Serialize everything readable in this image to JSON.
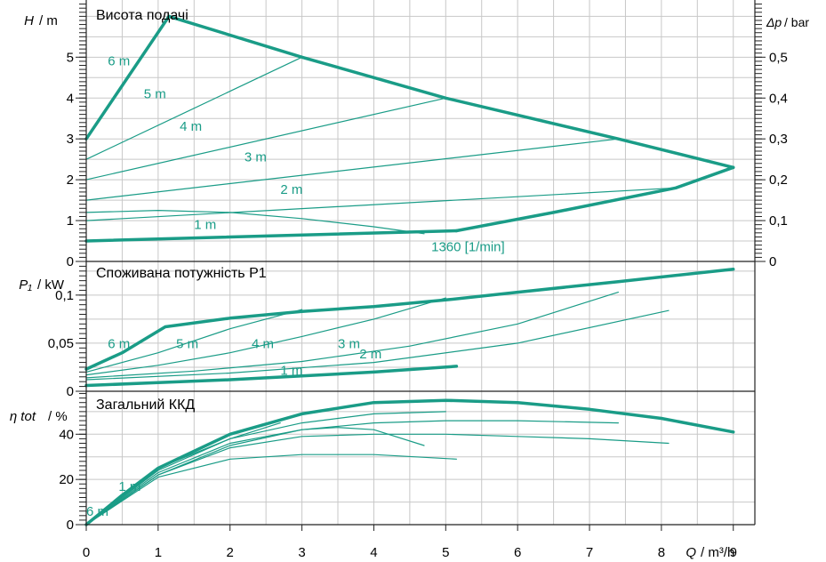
{
  "colors": {
    "curve": "#1a9c87",
    "grid": "#c8c8c8",
    "frame": "#222222",
    "text": "#000000"
  },
  "x_axis": {
    "label": "Q",
    "unit": "/ m³/h",
    "range": [
      0,
      9.3
    ],
    "ticks": [
      "0",
      "1",
      "2",
      "3",
      "4",
      "5",
      "6",
      "7",
      "8",
      "9"
    ]
  },
  "chart_data": [
    {
      "type": "line",
      "title": "Висота подачі",
      "ylabel": "H",
      "yunit": "/ m",
      "ylim": [
        0,
        6.4
      ],
      "yticks": [
        "0",
        "1",
        "2",
        "3",
        "4",
        "5"
      ],
      "secondary_axis": {
        "label": "Δp",
        "unit": "/ bar",
        "ylim": [
          0,
          0.64
        ],
        "ticks": [
          "0",
          "0,1",
          "0,2",
          "0,3",
          "0,4",
          "0,5"
        ]
      },
      "grid": true,
      "series": [
        {
          "name": "6 m",
          "x": [
            0,
            1.15
          ],
          "y": [
            3.0,
            6.0
          ]
        },
        {
          "name": "",
          "x": [
            1.15,
            3.0,
            5.0,
            7.4,
            9.0
          ],
          "y": [
            6.0,
            5.0,
            4.0,
            3.0,
            2.3
          ]
        },
        {
          "name": "5 m",
          "x": [
            0,
            3.0
          ],
          "y": [
            2.5,
            5.0
          ]
        },
        {
          "name": "4 m",
          "x": [
            0,
            5.0
          ],
          "y": [
            2.0,
            4.0
          ]
        },
        {
          "name": "3 m",
          "x": [
            0,
            7.4
          ],
          "y": [
            1.5,
            3.0
          ]
        },
        {
          "name": "2 m",
          "x": [
            0,
            8.2
          ],
          "y": [
            1.0,
            1.8
          ]
        },
        {
          "name": "1 m",
          "x": [
            0,
            5.15
          ],
          "y": [
            0.5,
            0.75
          ]
        },
        {
          "name": "",
          "x": [
            5.15,
            6.5,
            8.2,
            9.0
          ],
          "y": [
            0.75,
            1.2,
            1.8,
            2.3
          ]
        },
        {
          "name": "1360 [1/min]",
          "x": [
            0,
            1.0,
            2.0,
            3.0,
            4.0,
            4.7
          ],
          "y": [
            1.2,
            1.25,
            1.2,
            1.05,
            0.85,
            0.68
          ]
        }
      ],
      "annotations": [
        {
          "text": "6 m",
          "x": 0.3,
          "y": 4.8
        },
        {
          "text": "5 m",
          "x": 0.8,
          "y": 4.0
        },
        {
          "text": "4 m",
          "x": 1.3,
          "y": 3.2
        },
        {
          "text": "3 m",
          "x": 2.2,
          "y": 2.45
        },
        {
          "text": "2 m",
          "x": 2.7,
          "y": 1.65
        },
        {
          "text": "1 m",
          "x": 1.5,
          "y": 0.8
        },
        {
          "text": "1360 [1/min]",
          "x": 4.8,
          "y": 0.25
        }
      ]
    },
    {
      "type": "line",
      "title": "Споживана потужність P1",
      "ylabel": "P₁",
      "yunit": "/ kW",
      "ylim": [
        0,
        0.135
      ],
      "yticks": [
        "0",
        "0,05",
        "0,1"
      ],
      "grid": true,
      "series": [
        {
          "name": "6 m",
          "x": [
            0,
            0.5,
            1.1,
            2.0,
            3.0,
            4.0,
            5.0,
            6.0,
            7.4,
            9.0
          ],
          "y": [
            0.023,
            0.04,
            0.067,
            0.076,
            0.083,
            0.088,
            0.095,
            0.103,
            0.114,
            0.127
          ]
        },
        {
          "name": "5 m",
          "x": [
            0,
            1.0,
            2.0,
            3.0
          ],
          "y": [
            0.02,
            0.04,
            0.065,
            0.085
          ]
        },
        {
          "name": "4 m",
          "x": [
            0,
            1.0,
            2.0,
            3.0,
            4.0,
            5.0
          ],
          "y": [
            0.017,
            0.027,
            0.04,
            0.057,
            0.075,
            0.097
          ]
        },
        {
          "name": "3 m",
          "x": [
            0,
            1.5,
            3.0,
            4.5,
            6.0,
            7.4
          ],
          "y": [
            0.014,
            0.021,
            0.031,
            0.047,
            0.07,
            0.103
          ]
        },
        {
          "name": "2 m",
          "x": [
            0,
            2.0,
            4.0,
            6.0,
            8.1
          ],
          "y": [
            0.012,
            0.019,
            0.03,
            0.05,
            0.084
          ]
        },
        {
          "name": "1 m",
          "x": [
            0,
            1.0,
            2.0,
            3.0,
            4.0,
            5.15
          ],
          "y": [
            0.006,
            0.009,
            0.012,
            0.016,
            0.02,
            0.026
          ]
        }
      ],
      "annotations": [
        {
          "text": "6 m",
          "x": 0.3,
          "y": 0.045
        },
        {
          "text": "5 m",
          "x": 1.25,
          "y": 0.045
        },
        {
          "text": "4 m",
          "x": 2.3,
          "y": 0.045
        },
        {
          "text": "3 m",
          "x": 3.5,
          "y": 0.045
        },
        {
          "text": "2 m",
          "x": 3.8,
          "y": 0.034
        },
        {
          "text": "1 m",
          "x": 2.7,
          "y": 0.017
        }
      ]
    },
    {
      "type": "line",
      "title": "Загальний ККД",
      "ylabel": "η tot",
      "yunit": "/ %",
      "ylim": [
        0,
        59
      ],
      "yticks": [
        "0",
        "20",
        "40"
      ],
      "grid": true,
      "series": [
        {
          "name": "6 m",
          "x": [
            0,
            0.5,
            1.0,
            2.0,
            3.0,
            4.0,
            5.0,
            6.0,
            7.0,
            8.0,
            9.0
          ],
          "y": [
            0,
            13,
            25,
            40,
            49,
            54,
            55,
            54,
            51,
            47,
            41
          ]
        },
        {
          "name": "",
          "x": [
            0,
            1.0,
            2.0,
            3.0,
            4.0,
            5.0
          ],
          "y": [
            0,
            24,
            38,
            45,
            49,
            50
          ]
        },
        {
          "name": "",
          "x": [
            0,
            1.0,
            2.0,
            3.0,
            4.0,
            5.0,
            6.0,
            7.4
          ],
          "y": [
            0,
            23,
            36,
            42,
            45,
            46,
            46,
            45
          ]
        },
        {
          "name": "",
          "x": [
            0,
            1.0,
            2.0,
            3.0,
            4.0,
            5.0,
            6.0,
            7.0,
            8.1
          ],
          "y": [
            0,
            22,
            34,
            39,
            40,
            40,
            39,
            38,
            36
          ]
        },
        {
          "name": "",
          "x": [
            0,
            1.0,
            2.0,
            3.0,
            3.5,
            4.0,
            4.7
          ],
          "y": [
            0,
            22,
            35,
            42,
            43,
            42,
            35
          ]
        },
        {
          "name": "1 m",
          "x": [
            0,
            1.0,
            2.0,
            3.0,
            4.0,
            5.15
          ],
          "y": [
            0,
            21,
            29,
            31,
            31,
            29
          ]
        },
        {
          "name": "",
          "x": [
            0,
            1.0,
            2.0,
            2.7
          ],
          "y": [
            0,
            25,
            38,
            45
          ]
        }
      ],
      "annotations": [
        {
          "text": "1 m",
          "x": 0.45,
          "y": 15
        },
        {
          "text": "6 m",
          "x": 0.0,
          "y": 4
        }
      ]
    }
  ]
}
